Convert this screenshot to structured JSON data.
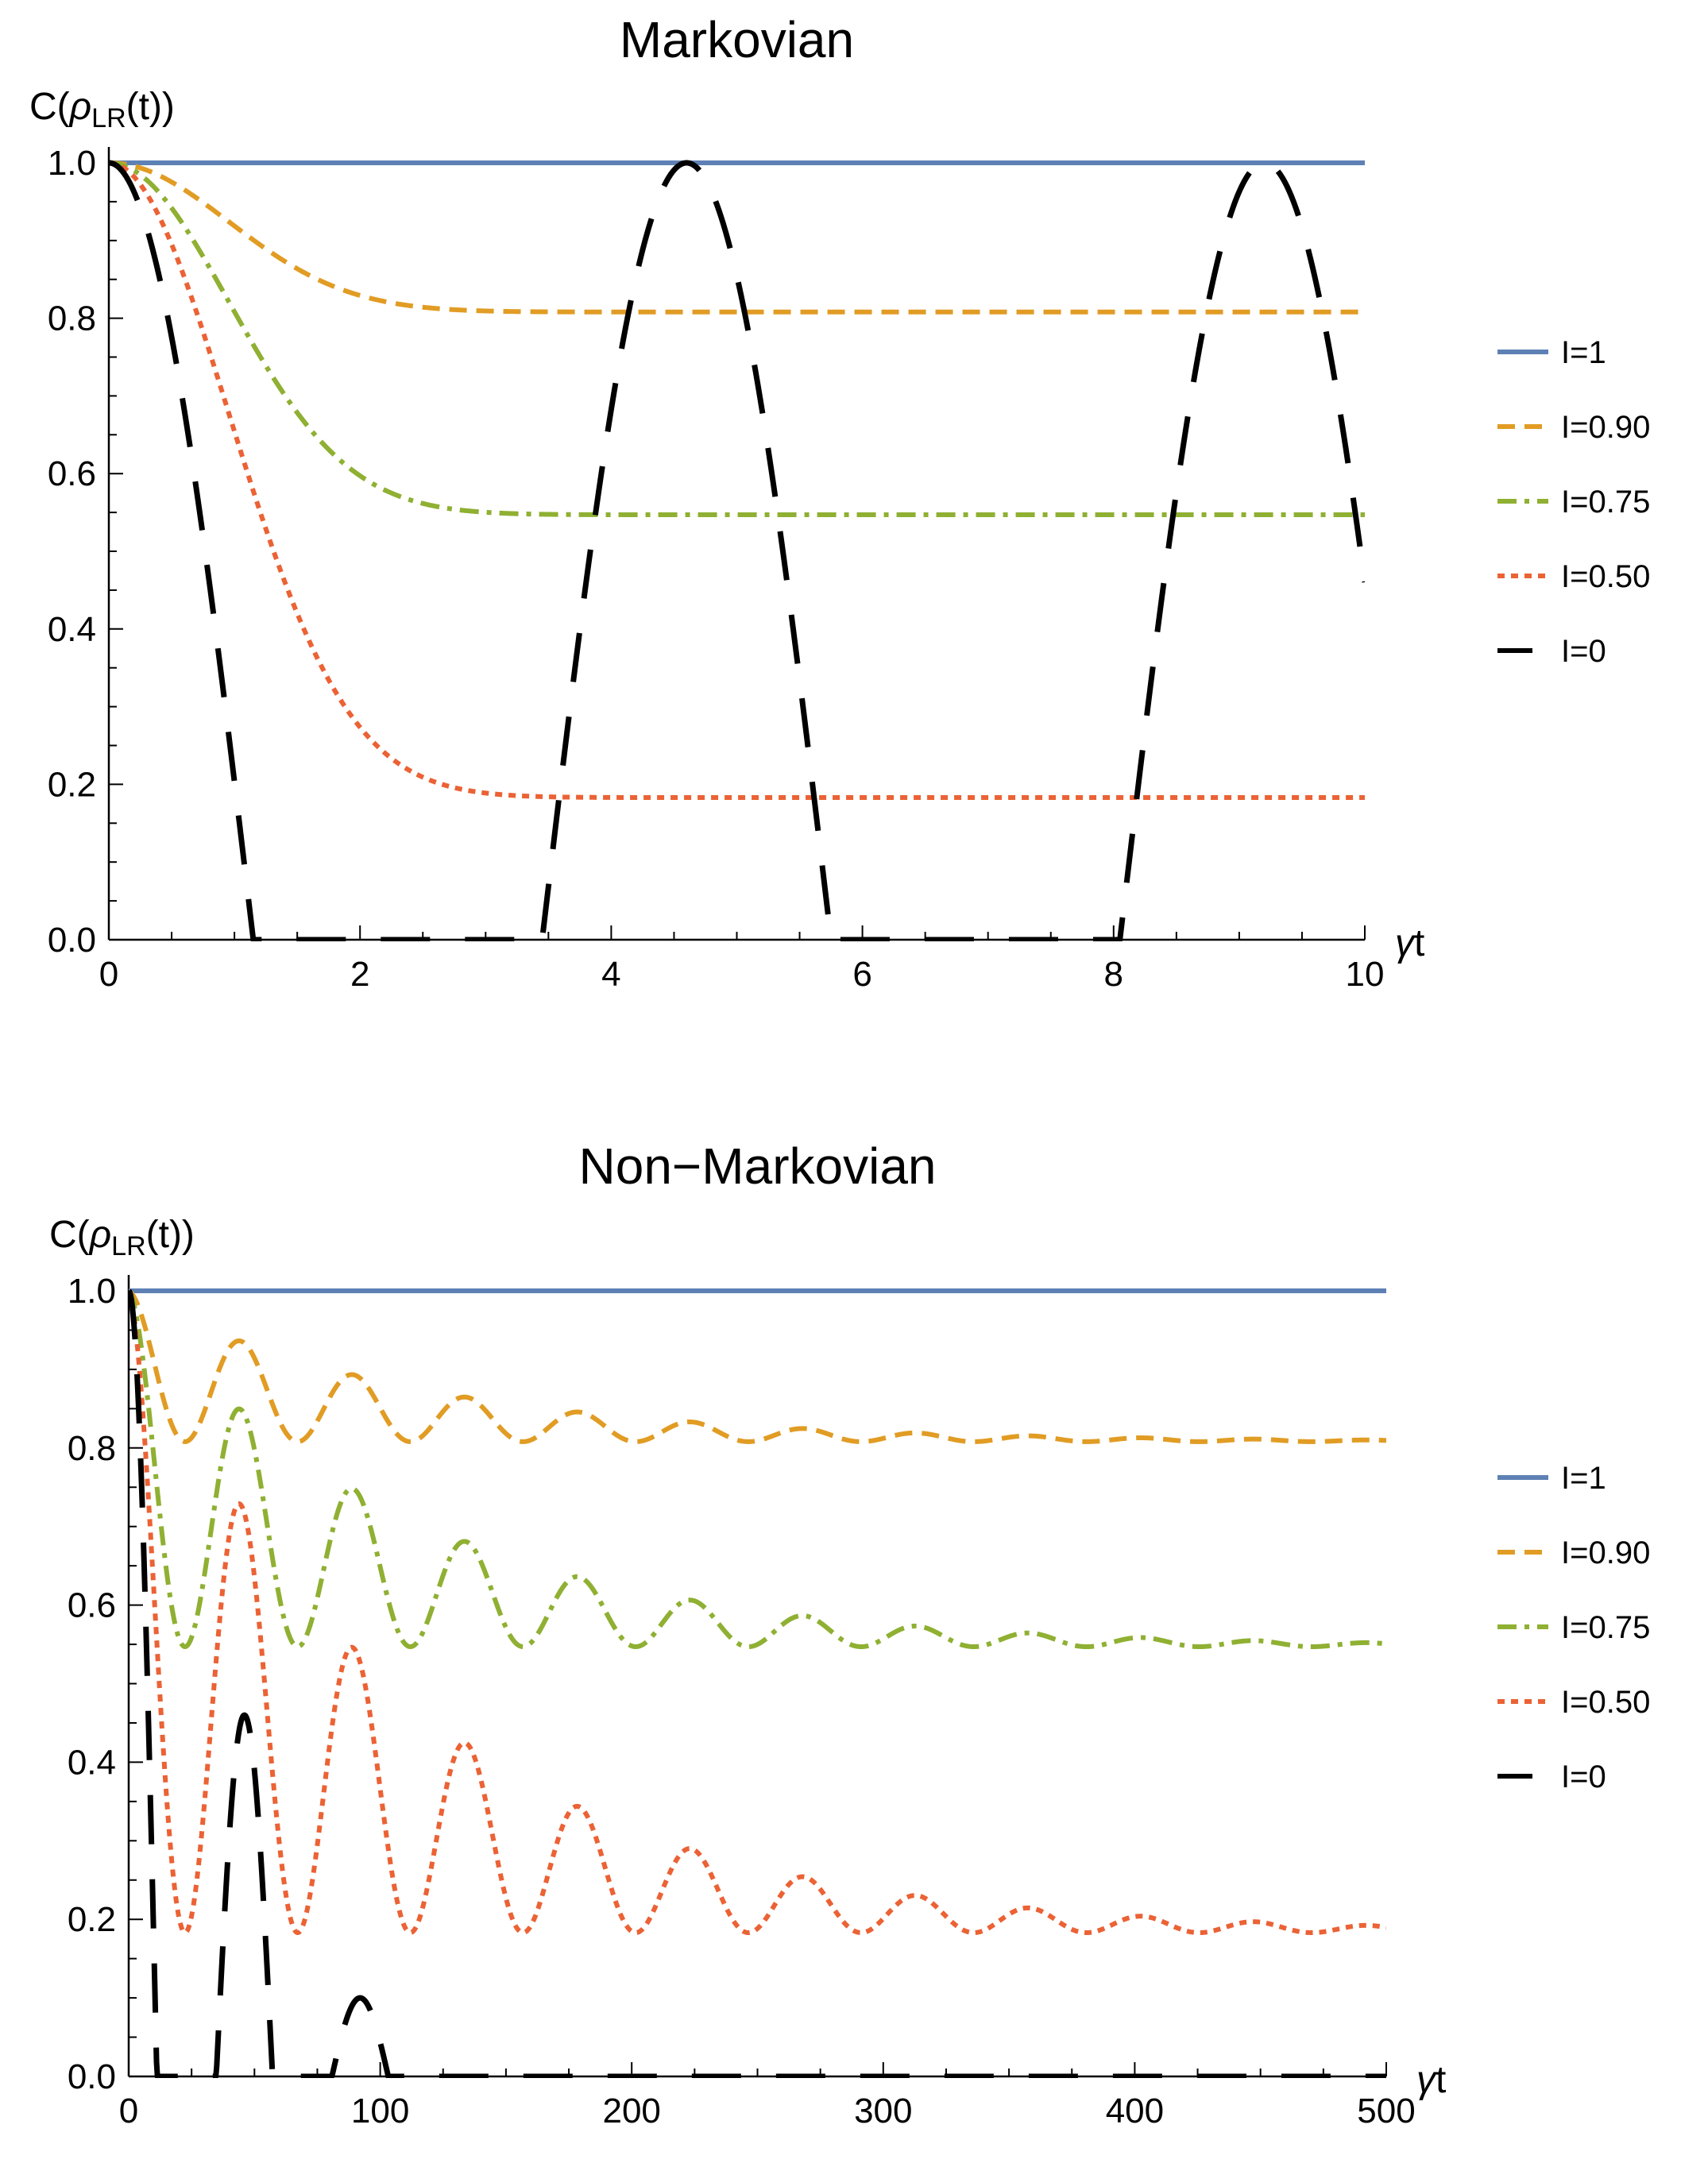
{
  "chart_data": [
    {
      "type": "line",
      "title": "Markovian",
      "ylabel": {
        "prefix": "C(",
        "rho": "ρ",
        "sub": "LR",
        "suffix": "(t))"
      },
      "xlabel": {
        "gamma": "γ",
        "t": "t"
      },
      "xlim": [
        0,
        10
      ],
      "ylim": [
        0,
        1
      ],
      "xticks": [
        0,
        2,
        4,
        6,
        8,
        10
      ],
      "yticks": [
        0.0,
        0.2,
        0.4,
        0.6,
        0.8,
        1.0
      ],
      "xtick_labels": [
        "0",
        "2",
        "4",
        "6",
        "8",
        "10"
      ],
      "ytick_labels": [
        "0.0",
        "0.2",
        "0.4",
        "0.6",
        "0.8",
        "1.0"
      ],
      "legend_position": "right",
      "series": [
        {
          "name": "I=1",
          "color": "#5e81b5",
          "dash": "solid",
          "model": "markov",
          "asymptote": 1.0,
          "rate": 0.55
        },
        {
          "name": "I=0.90",
          "color": "#e19c24",
          "dash": "dashed",
          "model": "markov",
          "asymptote": 0.808,
          "rate": 0.55
        },
        {
          "name": "I=0.75",
          "color": "#8fb032",
          "dash": "dashdot",
          "model": "markov",
          "asymptote": 0.547,
          "rate": 0.55
        },
        {
          "name": "I=0.50",
          "color": "#eb6235",
          "dash": "dotted",
          "model": "markov",
          "asymptote": 0.183,
          "rate": 0.55
        },
        {
          "name": "I=0",
          "color": "#000000",
          "dash": "longdash",
          "model": "markov-zero",
          "zero_crossing": 1.15
        }
      ]
    },
    {
      "type": "line",
      "title": "Non−Markovian",
      "ylabel": {
        "prefix": "C(",
        "rho": "ρ",
        "sub": "LR",
        "suffix": "(t))"
      },
      "xlabel": {
        "gamma": "γ",
        "t": "t"
      },
      "xlim": [
        0,
        500
      ],
      "ylim": [
        0,
        1
      ],
      "xticks": [
        0,
        100,
        200,
        300,
        400,
        500
      ],
      "yticks": [
        0.0,
        0.2,
        0.4,
        0.6,
        0.8,
        1.0
      ],
      "xtick_labels": [
        "0",
        "100",
        "200",
        "300",
        "400",
        "500"
      ],
      "ytick_labels": [
        "0.0",
        "0.2",
        "0.4",
        "0.6",
        "0.8",
        "1.0"
      ],
      "legend_position": "right",
      "series": [
        {
          "name": "I=1",
          "color": "#5e81b5",
          "dash": "solid",
          "model": "nonmarkov",
          "asymptote": 1.0
        },
        {
          "name": "I=0.90",
          "color": "#e19c24",
          "dash": "dashed",
          "model": "nonmarkov",
          "asymptote": 0.808
        },
        {
          "name": "I=0.75",
          "color": "#8fb032",
          "dash": "dashdot",
          "model": "nonmarkov",
          "asymptote": 0.547
        },
        {
          "name": "I=0.50",
          "color": "#eb6235",
          "dash": "dotted",
          "model": "nonmarkov",
          "asymptote": 0.183
        },
        {
          "name": "I=0",
          "color": "#000000",
          "dash": "longdash",
          "model": "nonmarkov-zero",
          "peaks": [
            [
              0,
              1.0
            ],
            [
              46,
              0.46
            ],
            [
              92,
              0.1
            ]
          ]
        }
      ],
      "oscillation": {
        "period": 44.8,
        "decay_time": 110
      }
    }
  ]
}
